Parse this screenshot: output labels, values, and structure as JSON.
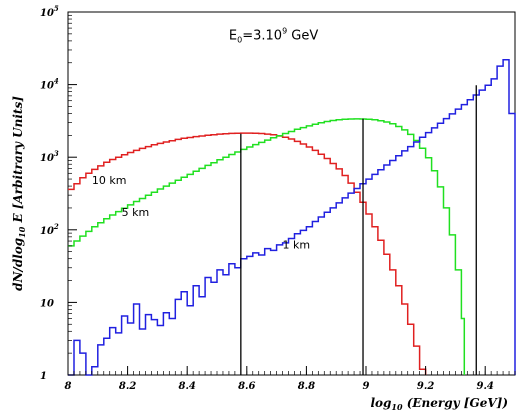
{
  "chart_data": {
    "type": "line",
    "xlabel_parts": [
      "log",
      "10",
      " (Energy [GeV])"
    ],
    "ylabel_parts": [
      "dN/dlog",
      "10",
      " E [Arbitrary Units]"
    ],
    "xlim": [
      8,
      9.5
    ],
    "ylim": [
      1,
      100000
    ],
    "yscale": "log",
    "grid": false,
    "x_ticks": [
      {
        "v": 8,
        "label": "8"
      },
      {
        "v": 8.2,
        "label": "8.2"
      },
      {
        "v": 8.4,
        "label": "8.4"
      },
      {
        "v": 8.6,
        "label": "8.6"
      },
      {
        "v": 8.8,
        "label": "8.8"
      },
      {
        "v": 9,
        "label": "9"
      },
      {
        "v": 9.2,
        "label": "9.2"
      },
      {
        "v": 9.4,
        "label": "9.4"
      }
    ],
    "y_ticks": [
      {
        "v": 1,
        "base": "1",
        "exp": ""
      },
      {
        "v": 10,
        "base": "10",
        "exp": ""
      },
      {
        "v": 100,
        "base": "10",
        "exp": "2"
      },
      {
        "v": 1000,
        "base": "10",
        "exp": "3"
      },
      {
        "v": 10000,
        "base": "10",
        "exp": "4"
      },
      {
        "v": 100000,
        "base": "10",
        "exp": "5"
      }
    ],
    "annotation": {
      "prefix": "E",
      "sub": "0",
      "mid": "=3.10",
      "sup": "9",
      "suffix": " GeV",
      "x": 8.54,
      "y": 42000
    },
    "series": [
      {
        "name": "10 km",
        "color": "#e02020",
        "label_x": 8.08,
        "label_y": 430,
        "points": [
          [
            8.0,
            360
          ],
          [
            8.02,
            430
          ],
          [
            8.04,
            520
          ],
          [
            8.06,
            600
          ],
          [
            8.08,
            680
          ],
          [
            8.1,
            760
          ],
          [
            8.12,
            850
          ],
          [
            8.14,
            930
          ],
          [
            8.16,
            1000
          ],
          [
            8.18,
            1080
          ],
          [
            8.2,
            1160
          ],
          [
            8.22,
            1240
          ],
          [
            8.24,
            1320
          ],
          [
            8.26,
            1400
          ],
          [
            8.28,
            1480
          ],
          [
            8.3,
            1550
          ],
          [
            8.32,
            1620
          ],
          [
            8.34,
            1690
          ],
          [
            8.36,
            1760
          ],
          [
            8.38,
            1820
          ],
          [
            8.4,
            1870
          ],
          [
            8.42,
            1920
          ],
          [
            8.44,
            1960
          ],
          [
            8.46,
            2000
          ],
          [
            8.48,
            2040
          ],
          [
            8.5,
            2080
          ],
          [
            8.52,
            2100
          ],
          [
            8.54,
            2130
          ],
          [
            8.56,
            2140
          ],
          [
            8.58,
            2150
          ],
          [
            8.6,
            2150
          ],
          [
            8.62,
            2140
          ],
          [
            8.64,
            2120
          ],
          [
            8.66,
            2080
          ],
          [
            8.68,
            2040
          ],
          [
            8.7,
            1960
          ],
          [
            8.72,
            1880
          ],
          [
            8.74,
            1780
          ],
          [
            8.76,
            1650
          ],
          [
            8.78,
            1520
          ],
          [
            8.8,
            1380
          ],
          [
            8.82,
            1240
          ],
          [
            8.84,
            1100
          ],
          [
            8.86,
            960
          ],
          [
            8.88,
            820
          ],
          [
            8.9,
            690
          ],
          [
            8.92,
            560
          ],
          [
            8.94,
            440
          ],
          [
            8.96,
            330
          ],
          [
            8.98,
            240
          ],
          [
            9.0,
            165
          ],
          [
            9.02,
            110
          ],
          [
            9.04,
            72
          ],
          [
            9.06,
            46
          ],
          [
            9.08,
            28
          ],
          [
            9.1,
            17
          ],
          [
            9.12,
            9.5
          ],
          [
            9.14,
            5
          ],
          [
            9.16,
            2.5
          ],
          [
            9.18,
            1.2
          ],
          [
            9.2,
            1
          ]
        ]
      },
      {
        "name": "5 km",
        "color": "#20e020",
        "label_x": 8.18,
        "label_y": 155,
        "points": [
          [
            8.0,
            60
          ],
          [
            8.02,
            70
          ],
          [
            8.04,
            82
          ],
          [
            8.06,
            95
          ],
          [
            8.08,
            110
          ],
          [
            8.1,
            125
          ],
          [
            8.12,
            142
          ],
          [
            8.14,
            160
          ],
          [
            8.16,
            178
          ],
          [
            8.18,
            198
          ],
          [
            8.2,
            220
          ],
          [
            8.22,
            245
          ],
          [
            8.24,
            270
          ],
          [
            8.26,
            300
          ],
          [
            8.28,
            330
          ],
          [
            8.3,
            365
          ],
          [
            8.32,
            400
          ],
          [
            8.34,
            440
          ],
          [
            8.36,
            480
          ],
          [
            8.38,
            530
          ],
          [
            8.4,
            580
          ],
          [
            8.42,
            640
          ],
          [
            8.44,
            700
          ],
          [
            8.46,
            770
          ],
          [
            8.48,
            840
          ],
          [
            8.5,
            920
          ],
          [
            8.52,
            1000
          ],
          [
            8.54,
            1090
          ],
          [
            8.56,
            1180
          ],
          [
            8.58,
            1280
          ],
          [
            8.6,
            1380
          ],
          [
            8.62,
            1490
          ],
          [
            8.64,
            1600
          ],
          [
            8.66,
            1720
          ],
          [
            8.68,
            1850
          ],
          [
            8.7,
            1980
          ],
          [
            8.72,
            2120
          ],
          [
            8.74,
            2260
          ],
          [
            8.76,
            2420
          ],
          [
            8.78,
            2560
          ],
          [
            8.8,
            2700
          ],
          [
            8.82,
            2850
          ],
          [
            8.84,
            2980
          ],
          [
            8.86,
            3100
          ],
          [
            8.88,
            3200
          ],
          [
            8.9,
            3280
          ],
          [
            8.92,
            3330
          ],
          [
            8.94,
            3360
          ],
          [
            8.96,
            3370
          ],
          [
            8.98,
            3360
          ],
          [
            9.0,
            3330
          ],
          [
            9.02,
            3270
          ],
          [
            9.04,
            3180
          ],
          [
            9.06,
            3050
          ],
          [
            9.08,
            2880
          ],
          [
            9.1,
            2650
          ],
          [
            9.12,
            2380
          ],
          [
            9.14,
            2060
          ],
          [
            9.16,
            1700
          ],
          [
            9.18,
            1330
          ],
          [
            9.2,
            980
          ],
          [
            9.22,
            650
          ],
          [
            9.24,
            390
          ],
          [
            9.26,
            200
          ],
          [
            9.28,
            85
          ],
          [
            9.3,
            28
          ],
          [
            9.32,
            6
          ],
          [
            9.33,
            1
          ]
        ]
      },
      {
        "name": "1 km",
        "color": "#2020e0",
        "label_x": 8.72,
        "label_y": 55,
        "points": [
          [
            8.0,
            1
          ],
          [
            8.02,
            3
          ],
          [
            8.04,
            2
          ],
          [
            8.06,
            1
          ],
          [
            8.08,
            1.3
          ],
          [
            8.1,
            2.6
          ],
          [
            8.12,
            3.2
          ],
          [
            8.14,
            4.5
          ],
          [
            8.16,
            3.8
          ],
          [
            8.18,
            6.5
          ],
          [
            8.2,
            5.2
          ],
          [
            8.22,
            9.5
          ],
          [
            8.24,
            4.3
          ],
          [
            8.26,
            6.8
          ],
          [
            8.28,
            5.8
          ],
          [
            8.3,
            4.8
          ],
          [
            8.32,
            7.2
          ],
          [
            8.34,
            6
          ],
          [
            8.36,
            11
          ],
          [
            8.38,
            14
          ],
          [
            8.4,
            9
          ],
          [
            8.42,
            17
          ],
          [
            8.44,
            12
          ],
          [
            8.46,
            22
          ],
          [
            8.48,
            19
          ],
          [
            8.5,
            28
          ],
          [
            8.52,
            24
          ],
          [
            8.54,
            34
          ],
          [
            8.56,
            30
          ],
          [
            8.58,
            40
          ],
          [
            8.6,
            43
          ],
          [
            8.62,
            48
          ],
          [
            8.64,
            45
          ],
          [
            8.66,
            55
          ],
          [
            8.68,
            52
          ],
          [
            8.7,
            62
          ],
          [
            8.72,
            66
          ],
          [
            8.74,
            76
          ],
          [
            8.76,
            88
          ],
          [
            8.78,
            98
          ],
          [
            8.8,
            110
          ],
          [
            8.82,
            130
          ],
          [
            8.84,
            150
          ],
          [
            8.86,
            175
          ],
          [
            8.88,
            200
          ],
          [
            8.9,
            235
          ],
          [
            8.92,
            275
          ],
          [
            8.94,
            320
          ],
          [
            8.96,
            370
          ],
          [
            8.98,
            430
          ],
          [
            9.0,
            500
          ],
          [
            9.02,
            580
          ],
          [
            9.04,
            670
          ],
          [
            9.06,
            780
          ],
          [
            9.08,
            900
          ],
          [
            9.1,
            1050
          ],
          [
            9.12,
            1220
          ],
          [
            9.14,
            1400
          ],
          [
            9.16,
            1620
          ],
          [
            9.18,
            1880
          ],
          [
            9.2,
            2180
          ],
          [
            9.22,
            2530
          ],
          [
            9.24,
            2940
          ],
          [
            9.26,
            3400
          ],
          [
            9.28,
            3950
          ],
          [
            9.3,
            4600
          ],
          [
            9.32,
            5300
          ],
          [
            9.34,
            6200
          ],
          [
            9.36,
            7200
          ],
          [
            9.38,
            8400
          ],
          [
            9.4,
            9800
          ],
          [
            9.42,
            12000
          ],
          [
            9.44,
            18000
          ],
          [
            9.46,
            22000
          ],
          [
            9.48,
            4000
          ],
          [
            9.5,
            1
          ]
        ]
      }
    ],
    "vertical_lines": [
      8.58,
      8.99,
      9.37
    ]
  }
}
